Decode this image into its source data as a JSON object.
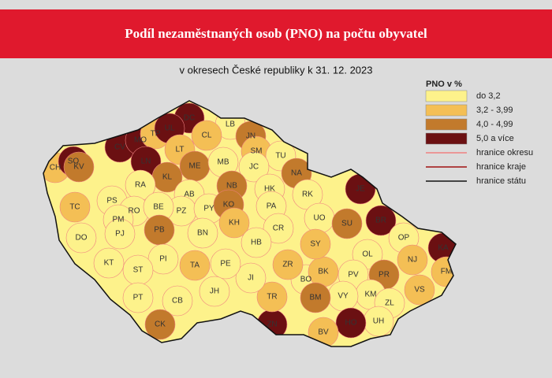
{
  "header": {
    "title": "Podíl nezaměstnaných osob (PNO) na počtu obyvatel",
    "subtitle": "v okresech České republiky k 31. 12. 2023"
  },
  "legend": {
    "title": "PNO v %",
    "classes": [
      {
        "label": "do 3,2",
        "color": "#fdf28b"
      },
      {
        "label": "3,2 - 3,99",
        "color": "#f4bf55"
      },
      {
        "label": "4,0 - 4,99",
        "color": "#c27a2c"
      },
      {
        "label": "5,0 a více",
        "color": "#6b1012"
      }
    ],
    "lines": [
      {
        "label": "hranice okresu",
        "color": "#f08080"
      },
      {
        "label": "hranice kraje",
        "color": "#a01010"
      },
      {
        "label": "hranice státu",
        "color": "#111111"
      }
    ]
  },
  "districts": [
    {
      "code": "CH",
      "class": 1
    },
    {
      "code": "SO",
      "class": 3
    },
    {
      "code": "KV",
      "class": 2
    },
    {
      "code": "CV",
      "class": 3
    },
    {
      "code": "MO",
      "class": 3
    },
    {
      "code": "TP",
      "class": 1
    },
    {
      "code": "DC",
      "class": 3
    },
    {
      "code": "UL",
      "class": 3
    },
    {
      "code": "LN",
      "class": 3
    },
    {
      "code": "LT",
      "class": 1
    },
    {
      "code": "LB",
      "class": 0
    },
    {
      "code": "JN",
      "class": 2
    },
    {
      "code": "CL",
      "class": 1
    },
    {
      "code": "SM",
      "class": 1
    },
    {
      "code": "TU",
      "class": 0
    },
    {
      "code": "NA",
      "class": 2
    },
    {
      "code": "ME",
      "class": 2
    },
    {
      "code": "KL",
      "class": 2
    },
    {
      "code": "MB",
      "class": 0
    },
    {
      "code": "JC",
      "class": 0
    },
    {
      "code": "RA",
      "class": 0
    },
    {
      "code": "AB",
      "class": 0
    },
    {
      "code": "PZ",
      "class": 0
    },
    {
      "code": "PY",
      "class": 0
    },
    {
      "code": "PS",
      "class": 0
    },
    {
      "code": "RO",
      "class": 0
    },
    {
      "code": "PM",
      "class": 0
    },
    {
      "code": "PJ",
      "class": 0
    },
    {
      "code": "BE",
      "class": 0
    },
    {
      "code": "NB",
      "class": 2
    },
    {
      "code": "KO",
      "class": 2
    },
    {
      "code": "KH",
      "class": 1
    },
    {
      "code": "HK",
      "class": 0
    },
    {
      "code": "RK",
      "class": 0
    },
    {
      "code": "PA",
      "class": 0
    },
    {
      "code": "TC",
      "class": 1
    },
    {
      "code": "DO",
      "class": 0
    },
    {
      "code": "PB",
      "class": 2
    },
    {
      "code": "BN",
      "class": 0
    },
    {
      "code": "CR",
      "class": 0
    },
    {
      "code": "UO",
      "class": 0
    },
    {
      "code": "SU",
      "class": 2
    },
    {
      "code": "JE",
      "class": 3
    },
    {
      "code": "BR",
      "class": 3
    },
    {
      "code": "OP",
      "class": 0
    },
    {
      "code": "KA",
      "class": 3
    },
    {
      "code": "NJ",
      "class": 1
    },
    {
      "code": "FM",
      "class": 1
    },
    {
      "code": "OL",
      "class": 0
    },
    {
      "code": "PR",
      "class": 2
    },
    {
      "code": "PV",
      "class": 0
    },
    {
      "code": "VS",
      "class": 1
    },
    {
      "code": "KM",
      "class": 0
    },
    {
      "code": "ZL",
      "class": 0
    },
    {
      "code": "VY",
      "class": 0
    },
    {
      "code": "UH",
      "class": 0
    },
    {
      "code": "HO",
      "class": 3
    },
    {
      "code": "BV",
      "class": 1
    },
    {
      "code": "BO",
      "class": 0
    },
    {
      "code": "BK",
      "class": 1
    },
    {
      "code": "BM",
      "class": 2
    },
    {
      "code": "ZN",
      "class": 3
    },
    {
      "code": "TR",
      "class": 1
    },
    {
      "code": "ZR",
      "class": 1
    },
    {
      "code": "SY",
      "class": 1
    },
    {
      "code": "HB",
      "class": 0
    },
    {
      "code": "JI",
      "class": 0
    },
    {
      "code": "PE",
      "class": 0
    },
    {
      "code": "TA",
      "class": 1
    },
    {
      "code": "PI",
      "class": 0
    },
    {
      "code": "ST",
      "class": 0
    },
    {
      "code": "KT",
      "class": 0
    },
    {
      "code": "JH",
      "class": 0
    },
    {
      "code": "PT",
      "class": 0
    },
    {
      "code": "CB",
      "class": 0
    },
    {
      "code": "CK",
      "class": 2
    }
  ]
}
